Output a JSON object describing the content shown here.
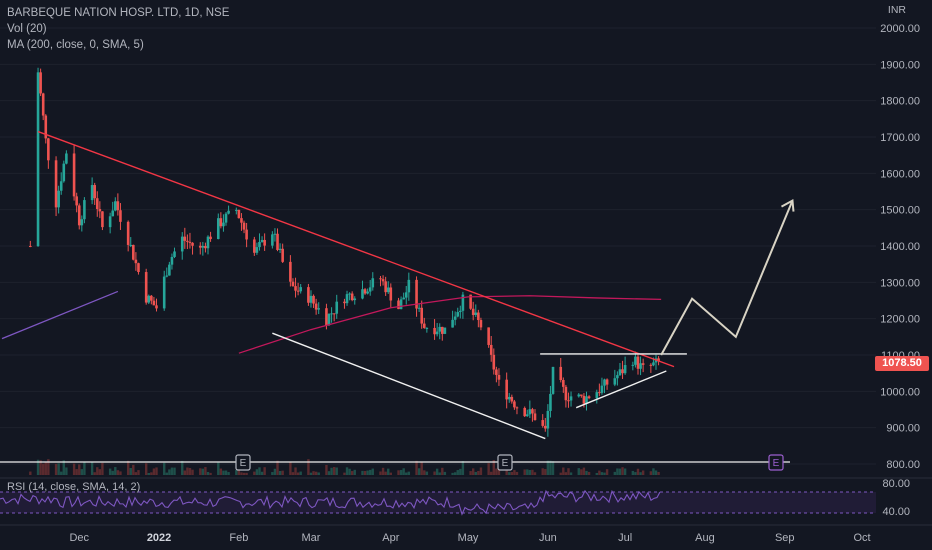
{
  "header": {
    "symbol": "BARBEQUE NATION HOSP. LTD, 1D, NSE",
    "vol": "Vol (20)",
    "ma": "MA (200, close, 0, SMA, 5)",
    "rsi": "RSI (14, close, SMA, 14, 2)",
    "currency": "INR",
    "last_price": "1078.50"
  },
  "chart_data": {
    "type": "candlestick",
    "xlabel": "",
    "ylabel": "",
    "ylim": [
      800,
      2000
    ],
    "x_ticks": [
      "Dec",
      "2022",
      "Feb",
      "Mar",
      "Apr",
      "May",
      "Jun",
      "Jul",
      "Aug",
      "Sep",
      "Oct"
    ],
    "y_ticks": [
      "800.00",
      "900.00",
      "1000.00",
      "1100.00",
      "1200.00",
      "1300.00",
      "1400.00",
      "1500.00",
      "1600.00",
      "1700.00",
      "1800.00",
      "1900.00",
      "2000.00"
    ],
    "rsi_ticks": [
      "80.00",
      "40.00"
    ],
    "earnings_markers": [
      "E",
      "E",
      "E"
    ],
    "price_path": [
      [
        "2021-11-12",
        1400
      ],
      [
        "2021-11-15",
        1880
      ],
      [
        "2021-11-18",
        1690
      ],
      [
        "2021-11-22",
        1520
      ],
      [
        "2021-11-26",
        1660
      ],
      [
        "2021-12-01",
        1470
      ],
      [
        "2021-12-06",
        1570
      ],
      [
        "2021-12-10",
        1450
      ],
      [
        "2021-12-15",
        1520
      ],
      [
        "2021-12-20",
        1420
      ],
      [
        "2021-12-27",
        1260
      ],
      [
        "2021-12-31",
        1230
      ],
      [
        "2022-01-05",
        1360
      ],
      [
        "2022-01-10",
        1420
      ],
      [
        "2022-01-17",
        1390
      ],
      [
        "2022-01-24",
        1460
      ],
      [
        "2022-01-31",
        1500
      ],
      [
        "2022-02-07",
        1380
      ],
      [
        "2022-02-14",
        1440
      ],
      [
        "2022-02-21",
        1290
      ],
      [
        "2022-02-28",
        1260
      ],
      [
        "2022-03-07",
        1200
      ],
      [
        "2022-03-14",
        1260
      ],
      [
        "2022-03-21",
        1280
      ],
      [
        "2022-03-28",
        1310
      ],
      [
        "2022-04-04",
        1230
      ],
      [
        "2022-04-08",
        1290
      ],
      [
        "2022-04-14",
        1180
      ],
      [
        "2022-04-22",
        1170
      ],
      [
        "2022-04-29",
        1250
      ],
      [
        "2022-05-06",
        1180
      ],
      [
        "2022-05-13",
        1020
      ],
      [
        "2022-05-20",
        960
      ],
      [
        "2022-05-27",
        930
      ],
      [
        "2022-05-31",
        890
      ],
      [
        "2022-06-03",
        1050
      ],
      [
        "2022-06-08",
        990
      ],
      [
        "2022-06-15",
        980
      ],
      [
        "2022-06-22",
        1010
      ],
      [
        "2022-06-29",
        1050
      ],
      [
        "2022-07-04",
        1090
      ],
      [
        "2022-07-08",
        1060
      ],
      [
        "2022-07-14",
        1078.5
      ]
    ],
    "moving_average_200": [
      [
        "2022-02-01",
        1105
      ],
      [
        "2022-03-01",
        1170
      ],
      [
        "2022-04-01",
        1230
      ],
      [
        "2022-05-01",
        1260
      ],
      [
        "2022-05-25",
        1263
      ],
      [
        "2022-06-20",
        1257
      ],
      [
        "2022-07-15",
        1253
      ]
    ],
    "drawings": {
      "upper_trendline": [
        [
          "2021-11-15",
          1715
        ],
        [
          "2022-07-20",
          1068
        ]
      ],
      "lower_trendline": [
        [
          "2022-02-14",
          1160
        ],
        [
          "2022-05-31",
          870
        ]
      ],
      "resistance": [
        [
          "2022-05-29",
          1103
        ],
        [
          "2022-07-25",
          1103
        ]
      ],
      "triangle_support": [
        [
          "2022-06-12",
          955
        ],
        [
          "2022-07-17",
          1056
        ]
      ],
      "projection": [
        [
          "2022-07-15",
          1100
        ],
        [
          "2022-07-27",
          1255
        ],
        [
          "2022-08-13",
          1150
        ],
        [
          "2022-09-04",
          1525
        ]
      ],
      "left_ma": [
        [
          "2021-11-01",
          1145
        ],
        [
          "2021-12-16",
          1275
        ]
      ]
    },
    "colors": {
      "background": "#131722",
      "up": "#26a69a",
      "down": "#ef5350",
      "trendline_red": "#f23645",
      "ma": "#c2185b",
      "drawing_white": "#f0f0f0",
      "projection": "#d8d3c4",
      "rsi": "#7e57c2",
      "grid": "#1e222d"
    }
  }
}
